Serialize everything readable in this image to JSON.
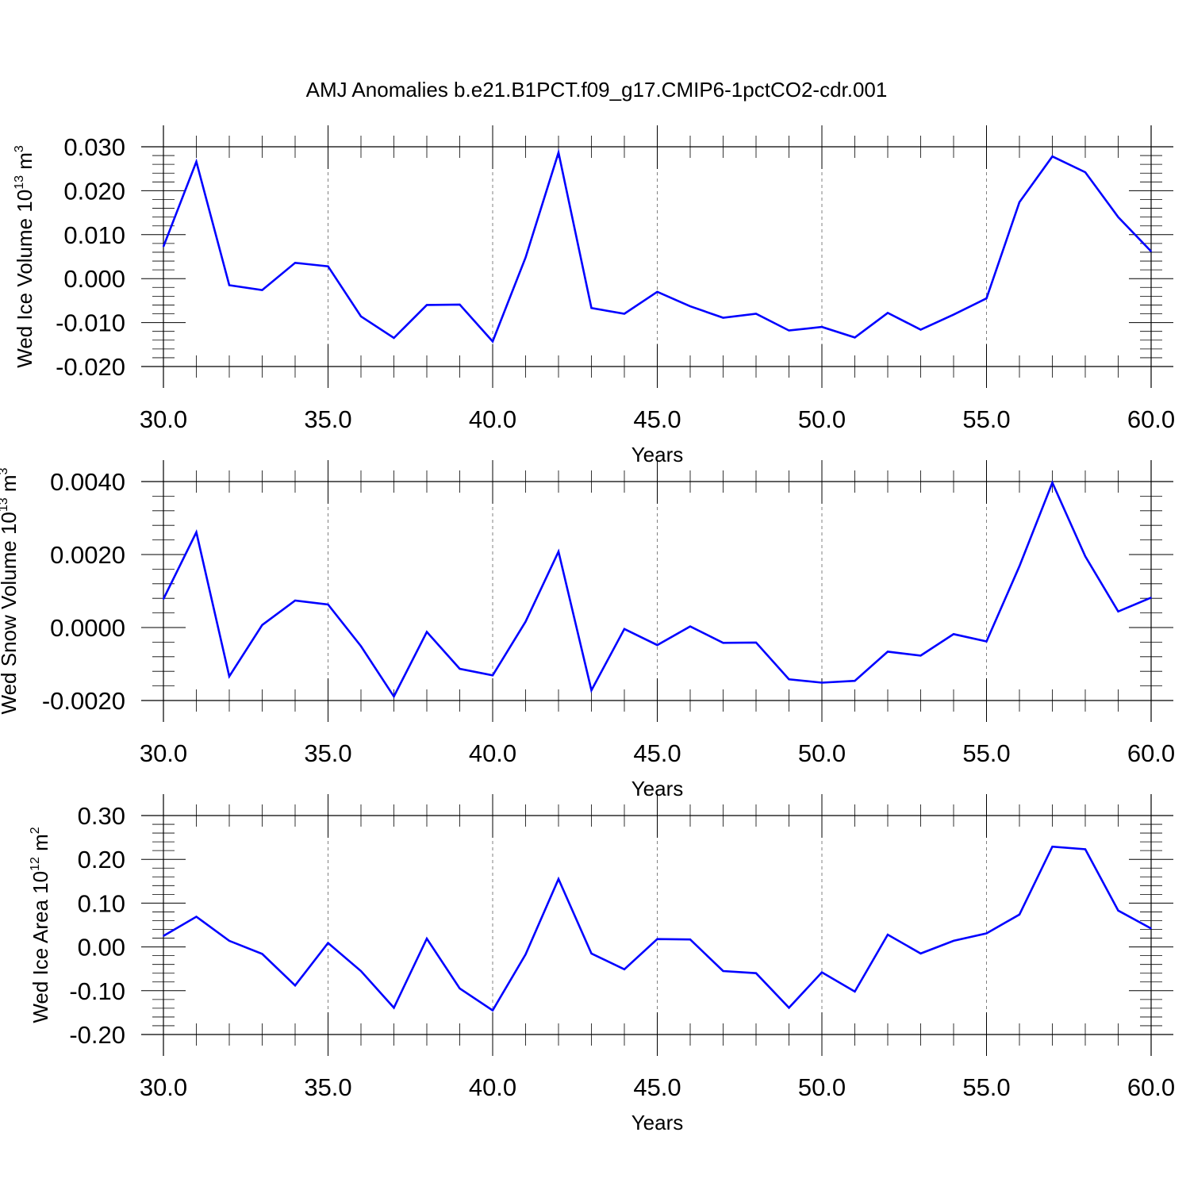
{
  "title": "AMJ Anomalies b.e21.B1PCT.f09_g17.CMIP6-1pctCO2-cdr.001",
  "colors": {
    "line": "#0000ff",
    "axis": "#000000",
    "grid": "#808080"
  },
  "chart_data": [
    {
      "type": "line",
      "xlabel": "Years",
      "ylabel": {
        "base": "Wed Ice Volume 10",
        "exp": "13",
        "unit": " m",
        "unit_exp": "3"
      },
      "xlim": [
        30,
        60
      ],
      "ylim": [
        -0.02,
        0.03
      ],
      "x_ticks": [
        30,
        35,
        40,
        45,
        50,
        55,
        60
      ],
      "x_tick_labels": [
        "30.0",
        "35.0",
        "40.0",
        "45.0",
        "50.0",
        "55.0",
        "60.0"
      ],
      "y_ticks": [
        -0.02,
        -0.01,
        0.0,
        0.01,
        0.02,
        0.03
      ],
      "y_tick_labels": [
        "-0.020",
        "-0.010",
        "0.000",
        "0.010",
        "0.020",
        "0.030"
      ],
      "grid": "vertical dashed at major x ticks",
      "x": [
        30,
        31,
        32,
        33,
        34,
        35,
        36,
        37,
        38,
        39,
        40,
        41,
        42,
        43,
        44,
        45,
        46,
        47,
        48,
        49,
        50,
        51,
        52,
        53,
        54,
        55,
        56,
        57,
        58,
        59,
        60
      ],
      "values": [
        0.0073,
        0.0266,
        -0.0015,
        -0.0026,
        0.0036,
        0.0028,
        -0.0086,
        -0.0135,
        -0.006,
        -0.0059,
        -0.0143,
        0.0048,
        0.0287,
        -0.0067,
        -0.008,
        -0.003,
        -0.0063,
        -0.0089,
        -0.008,
        -0.0118,
        -0.011,
        -0.0134,
        -0.0078,
        -0.0116,
        -0.0082,
        -0.0045,
        0.0174,
        0.0278,
        0.0242,
        0.014,
        0.0062
      ]
    },
    {
      "type": "line",
      "xlabel": "Years",
      "ylabel": {
        "base": "Wed Snow Volume 10",
        "exp": "13",
        "unit": " m",
        "unit_exp": "3"
      },
      "xlim": [
        30,
        60
      ],
      "ylim": [
        -0.002,
        0.004
      ],
      "x_ticks": [
        30,
        35,
        40,
        45,
        50,
        55,
        60
      ],
      "x_tick_labels": [
        "30.0",
        "35.0",
        "40.0",
        "45.0",
        "50.0",
        "55.0",
        "60.0"
      ],
      "y_ticks": [
        -0.002,
        0.0,
        0.002,
        0.004
      ],
      "y_tick_labels": [
        "-0.0020",
        "0.0000",
        "0.0020",
        "0.0040"
      ],
      "grid": "vertical dashed at major x ticks",
      "x": [
        30,
        31,
        32,
        33,
        34,
        35,
        36,
        37,
        38,
        39,
        40,
        41,
        42,
        43,
        44,
        45,
        46,
        47,
        48,
        49,
        50,
        51,
        52,
        53,
        54,
        55,
        56,
        57,
        58,
        59,
        60
      ],
      "values": [
        0.00078,
        0.00261,
        -0.00134,
        7e-05,
        0.00074,
        0.00063,
        -0.00051,
        -0.00189,
        -0.00012,
        -0.00113,
        -0.00131,
        0.00016,
        0.00208,
        -0.00172,
        -4e-05,
        -0.00048,
        3e-05,
        -0.00042,
        -0.00041,
        -0.00142,
        -0.00151,
        -0.00146,
        -0.00066,
        -0.00077,
        -0.00018,
        -0.00038,
        0.00168,
        0.00397,
        0.00195,
        0.00044,
        0.00082
      ]
    },
    {
      "type": "line",
      "xlabel": "Years",
      "ylabel": {
        "base": "Wed Ice Area 10",
        "exp": "12",
        "unit": " m",
        "unit_exp": "2"
      },
      "xlim": [
        30,
        60
      ],
      "ylim": [
        -0.2,
        0.3
      ],
      "x_ticks": [
        30,
        35,
        40,
        45,
        50,
        55,
        60
      ],
      "x_tick_labels": [
        "30.0",
        "35.0",
        "40.0",
        "45.0",
        "50.0",
        "55.0",
        "60.0"
      ],
      "y_ticks": [
        -0.2,
        -0.1,
        0.0,
        0.1,
        0.2,
        0.3
      ],
      "y_tick_labels": [
        "-0.20",
        "-0.10",
        "0.00",
        "0.10",
        "0.20",
        "0.30"
      ],
      "grid": "vertical dashed at major x ticks",
      "x": [
        30,
        31,
        32,
        33,
        34,
        35,
        36,
        37,
        38,
        39,
        40,
        41,
        42,
        43,
        44,
        45,
        46,
        47,
        48,
        49,
        50,
        51,
        52,
        53,
        54,
        55,
        56,
        57,
        58,
        59,
        60
      ],
      "values": [
        0.025,
        0.069,
        0.014,
        -0.016,
        -0.088,
        0.009,
        -0.055,
        -0.139,
        0.019,
        -0.095,
        -0.145,
        -0.017,
        0.155,
        -0.015,
        -0.051,
        0.018,
        0.017,
        -0.055,
        -0.06,
        -0.139,
        -0.058,
        -0.102,
        0.028,
        -0.015,
        0.014,
        0.031,
        0.074,
        0.229,
        0.223,
        0.083,
        0.042
      ]
    }
  ]
}
